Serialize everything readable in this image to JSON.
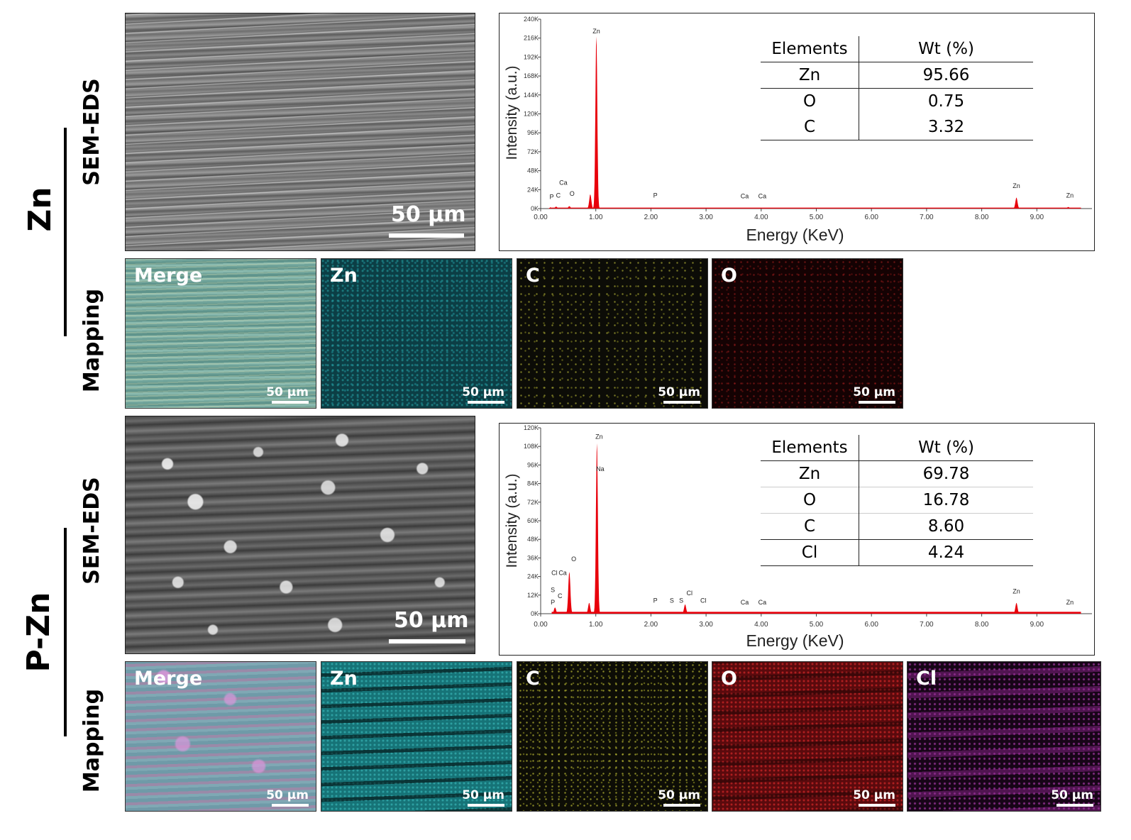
{
  "groups": [
    {
      "label": "Zn",
      "sem_row_label": "SEM-EDS",
      "map_row_label": "Mapping",
      "sem_scale": "50 μm",
      "maps": [
        {
          "label": "Merge",
          "scale": "50 μm"
        },
        {
          "label": "Zn",
          "scale": "50 μm"
        },
        {
          "label": "C",
          "scale": "50 μm"
        },
        {
          "label": "O",
          "scale": "50 μm"
        }
      ],
      "table": {
        "headers": [
          "Elements",
          "Wt (%)"
        ],
        "rows": [
          {
            "element": "Zn",
            "wt": "95.66"
          },
          {
            "element": "O",
            "wt": "0.75"
          },
          {
            "element": "C",
            "wt": "3.32"
          }
        ]
      }
    },
    {
      "label": "P-Zn",
      "sem_row_label": "SEM-EDS",
      "map_row_label": "Mapping",
      "sem_scale": "50 μm",
      "maps": [
        {
          "label": "Merge",
          "scale": "50 μm"
        },
        {
          "label": "Zn",
          "scale": "50 μm"
        },
        {
          "label": "C",
          "scale": "50 μm"
        },
        {
          "label": "O",
          "scale": "50 μm"
        },
        {
          "label": "Cl",
          "scale": "50 μm"
        }
      ],
      "table": {
        "headers": [
          "Elements",
          "Wt (%)"
        ],
        "rows": [
          {
            "element": "Zn",
            "wt": "69.78"
          },
          {
            "element": "O",
            "wt": "16.78"
          },
          {
            "element": "C",
            "wt": "8.60"
          },
          {
            "element": "Cl",
            "wt": "4.24"
          }
        ]
      }
    }
  ],
  "colors": {
    "spectrum": "#e8000b",
    "axis": "#444444"
  },
  "chart_data": [
    {
      "type": "area",
      "xlabel": "Energy (KeV)",
      "ylabel": "Intensity (a.u.)",
      "xlim": [
        0,
        10
      ],
      "ylim": [
        0,
        240
      ],
      "x_ticks": [
        "0.00",
        "1.00",
        "2.00",
        "3.00",
        "4.00",
        "5.00",
        "6.00",
        "7.00",
        "8.00",
        "9.00"
      ],
      "y_ticks": [
        "0K",
        "24K",
        "48K",
        "72K",
        "96K",
        "120K",
        "144K",
        "168K",
        "192K",
        "216K",
        "240K"
      ],
      "peaks": [
        {
          "x": 0.18,
          "y": 1.5
        },
        {
          "x": 0.28,
          "y": 2.5
        },
        {
          "x": 0.52,
          "y": 3
        },
        {
          "x": 0.9,
          "y": 18
        },
        {
          "x": 1.01,
          "y": 218
        },
        {
          "x": 2.01,
          "y": 1
        },
        {
          "x": 8.63,
          "y": 14
        },
        {
          "x": 9.57,
          "y": 2
        }
      ],
      "annotations": [
        {
          "text": "Zn",
          "x": 1.01,
          "y": 222
        },
        {
          "text": "Ca",
          "x": 0.41,
          "y": 30
        },
        {
          "text": "P",
          "x": 0.2,
          "y": 12
        },
        {
          "text": "C",
          "x": 0.32,
          "y": 14
        },
        {
          "text": "O",
          "x": 0.57,
          "y": 16
        },
        {
          "text": "P",
          "x": 2.08,
          "y": 14
        },
        {
          "text": "Ca",
          "x": 3.7,
          "y": 13
        },
        {
          "text": "Ca",
          "x": 4.02,
          "y": 13
        },
        {
          "text": "Zn",
          "x": 8.63,
          "y": 26
        },
        {
          "text": "Zn",
          "x": 9.6,
          "y": 14
        }
      ]
    },
    {
      "type": "area",
      "xlabel": "Energy (KeV)",
      "ylabel": "Intensity (a.u.)",
      "xlim": [
        0,
        10
      ],
      "ylim": [
        0,
        120
      ],
      "x_ticks": [
        "0.00",
        "1.00",
        "2.00",
        "3.00",
        "4.00",
        "5.00",
        "6.00",
        "7.00",
        "8.00",
        "9.00"
      ],
      "y_ticks": [
        "0K",
        "12K",
        "24K",
        "36K",
        "48K",
        "60K",
        "72K",
        "84K",
        "96K",
        "108K",
        "120K"
      ],
      "peaks": [
        {
          "x": 0.26,
          "y": 4
        },
        {
          "x": 0.52,
          "y": 27
        },
        {
          "x": 0.88,
          "y": 7
        },
        {
          "x": 1.02,
          "y": 110
        },
        {
          "x": 2.62,
          "y": 6
        },
        {
          "x": 8.63,
          "y": 7
        },
        {
          "x": 9.57,
          "y": 1
        }
      ],
      "annotations": [
        {
          "text": "Zn",
          "x": 1.06,
          "y": 113
        },
        {
          "text": "Na",
          "x": 1.08,
          "y": 92
        },
        {
          "text": "O",
          "x": 0.6,
          "y": 34
        },
        {
          "text": "Cl",
          "x": 0.25,
          "y": 25
        },
        {
          "text": "Ca",
          "x": 0.4,
          "y": 25
        },
        {
          "text": "S",
          "x": 0.22,
          "y": 14
        },
        {
          "text": "C",
          "x": 0.35,
          "y": 10
        },
        {
          "text": "P",
          "x": 0.22,
          "y": 6
        },
        {
          "text": "P",
          "x": 2.08,
          "y": 7
        },
        {
          "text": "S",
          "x": 2.38,
          "y": 7
        },
        {
          "text": "S",
          "x": 2.55,
          "y": 7
        },
        {
          "text": "Cl",
          "x": 2.7,
          "y": 12
        },
        {
          "text": "Cl",
          "x": 2.95,
          "y": 7
        },
        {
          "text": "Ca",
          "x": 3.7,
          "y": 6
        },
        {
          "text": "Ca",
          "x": 4.02,
          "y": 6
        },
        {
          "text": "Zn",
          "x": 8.63,
          "y": 13
        },
        {
          "text": "Zn",
          "x": 9.6,
          "y": 6
        }
      ]
    }
  ]
}
